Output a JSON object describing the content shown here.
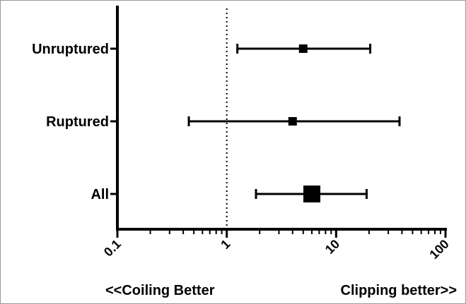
{
  "chart_data": {
    "type": "forest",
    "x_scale": "log",
    "xlim": [
      0.1,
      100
    ],
    "x_ticks": [
      0.1,
      1,
      10,
      100
    ],
    "x_tick_labels": [
      "0.1",
      "1",
      "10",
      "100"
    ],
    "reference_line_x": 1,
    "rows": [
      {
        "label": "Unruptured",
        "estimate": 5.0,
        "ci_low": 1.25,
        "ci_high": 20.5,
        "marker": "small"
      },
      {
        "label": "Ruptured",
        "estimate": 4.0,
        "ci_low": 0.45,
        "ci_high": 38.0,
        "marker": "small"
      },
      {
        "label": "All",
        "estimate": 6.0,
        "ci_low": 1.85,
        "ci_high": 19.0,
        "marker": "large"
      }
    ],
    "footer_left": "<<Coiling Better",
    "footer_right": "Clipping better>>",
    "grid": false,
    "colors": {
      "marks": "#000000",
      "frame": "#9a9a9a"
    }
  }
}
